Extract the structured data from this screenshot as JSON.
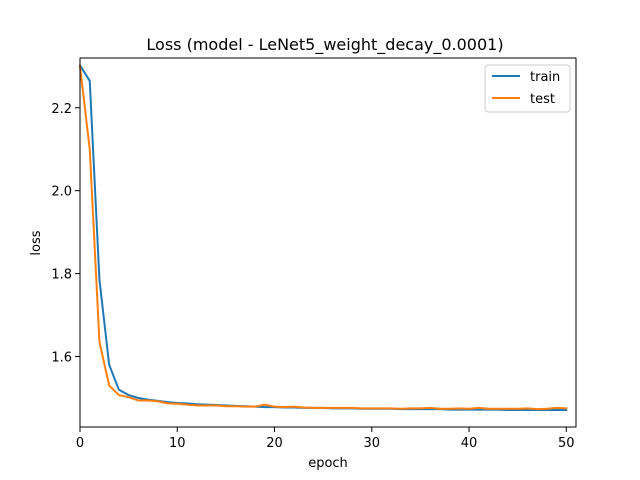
{
  "chart_data": {
    "type": "line",
    "title": "Loss (model - LeNet5_weight_decay_0.0001)",
    "xlabel": "epoch",
    "ylabel": "loss",
    "xlim": [
      0,
      51
    ],
    "ylim": [
      1.43,
      2.32
    ],
    "xticks": [
      0,
      10,
      20,
      30,
      40,
      50
    ],
    "yticks": [
      1.6,
      1.8,
      2.0,
      2.2
    ],
    "grid": false,
    "legend_position": "upper right",
    "x": [
      0,
      1,
      2,
      3,
      4,
      5,
      6,
      7,
      8,
      9,
      10,
      11,
      12,
      13,
      14,
      15,
      16,
      17,
      18,
      19,
      20,
      21,
      22,
      23,
      24,
      25,
      26,
      27,
      28,
      29,
      30,
      31,
      32,
      33,
      34,
      35,
      36,
      37,
      38,
      39,
      40,
      41,
      42,
      43,
      44,
      45,
      46,
      47,
      48,
      49,
      50
    ],
    "series": [
      {
        "name": "train",
        "color": "#1f77b4",
        "values": [
          2.302,
          2.265,
          1.785,
          1.58,
          1.52,
          1.507,
          1.5,
          1.496,
          1.493,
          1.49,
          1.488,
          1.487,
          1.485,
          1.484,
          1.483,
          1.482,
          1.481,
          1.48,
          1.479,
          1.478,
          1.478,
          1.477,
          1.477,
          1.476,
          1.476,
          1.476,
          1.475,
          1.475,
          1.475,
          1.474,
          1.474,
          1.474,
          1.474,
          1.473,
          1.473,
          1.473,
          1.473,
          1.473,
          1.472,
          1.472,
          1.472,
          1.472,
          1.472,
          1.472,
          1.471,
          1.471,
          1.471,
          1.471,
          1.471,
          1.471,
          1.471
        ]
      },
      {
        "name": "test",
        "color": "#ff7f0e",
        "values": [
          2.3,
          2.1,
          1.635,
          1.53,
          1.507,
          1.502,
          1.494,
          1.494,
          1.492,
          1.487,
          1.486,
          1.484,
          1.482,
          1.482,
          1.482,
          1.48,
          1.48,
          1.479,
          1.479,
          1.484,
          1.479,
          1.478,
          1.479,
          1.477,
          1.476,
          1.476,
          1.476,
          1.476,
          1.476,
          1.475,
          1.475,
          1.475,
          1.475,
          1.474,
          1.475,
          1.475,
          1.476,
          1.474,
          1.474,
          1.475,
          1.474,
          1.476,
          1.474,
          1.474,
          1.474,
          1.474,
          1.475,
          1.473,
          1.474,
          1.476,
          1.475
        ]
      }
    ]
  }
}
